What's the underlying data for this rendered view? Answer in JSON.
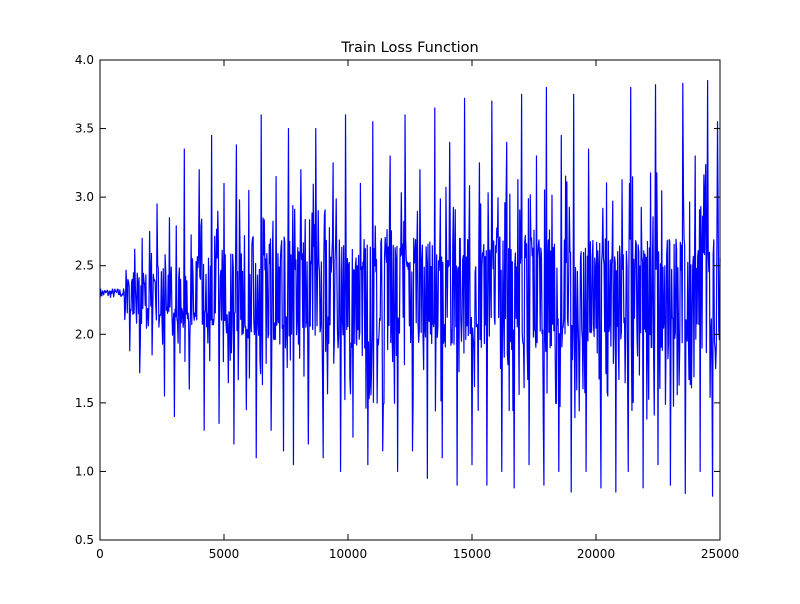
{
  "chart_data": {
    "type": "line",
    "title": "Train Loss Function",
    "xlabel": "",
    "ylabel": "",
    "xlim": [
      0,
      25000
    ],
    "ylim": [
      0.5,
      4.0
    ],
    "xticks": [
      0,
      5000,
      10000,
      15000,
      20000,
      25000
    ],
    "xtick_labels": [
      "0",
      "5000",
      "10000",
      "15000",
      "20000",
      "25000"
    ],
    "yticks": [
      0.5,
      1.0,
      1.5,
      2.0,
      2.5,
      3.0,
      3.5,
      4.0
    ],
    "ytick_labels": [
      "0.5",
      "1.0",
      "1.5",
      "2.0",
      "2.5",
      "3.0",
      "3.5",
      "4.0"
    ],
    "grid": false,
    "legend": "none",
    "series": [
      {
        "color": "#0000ff",
        "summary": {
          "start_level": 2.3,
          "center_level": 2.28,
          "flat_until_iteration": 1000,
          "peak_max": 3.85,
          "trough_min": 0.82,
          "dense_band_low": 1.9,
          "dense_band_high": 2.7,
          "iterations": 25000
        },
        "spikes_high": [
          [
            1400,
            2.62
          ],
          [
            1700,
            2.7
          ],
          [
            2000,
            2.75
          ],
          [
            2300,
            2.95
          ],
          [
            2800,
            2.85
          ],
          [
            3400,
            3.35
          ],
          [
            4000,
            3.2
          ],
          [
            4500,
            3.45
          ],
          [
            5000,
            3.1
          ],
          [
            5500,
            3.38
          ],
          [
            6000,
            3.05
          ],
          [
            6500,
            3.6
          ],
          [
            7100,
            3.15
          ],
          [
            7600,
            3.5
          ],
          [
            8100,
            3.2
          ],
          [
            8700,
            3.5
          ],
          [
            9400,
            3.25
          ],
          [
            9900,
            3.6
          ],
          [
            10500,
            3.1
          ],
          [
            11000,
            3.55
          ],
          [
            11700,
            3.3
          ],
          [
            12300,
            3.6
          ],
          [
            12900,
            3.2
          ],
          [
            13500,
            3.65
          ],
          [
            14100,
            3.4
          ],
          [
            14700,
            3.72
          ],
          [
            15300,
            3.25
          ],
          [
            15800,
            3.7
          ],
          [
            16400,
            3.4
          ],
          [
            17000,
            3.75
          ],
          [
            17600,
            3.3
          ],
          [
            18000,
            3.8
          ],
          [
            18600,
            3.45
          ],
          [
            19100,
            3.75
          ],
          [
            19700,
            3.35
          ],
          [
            20200,
            3.8
          ],
          [
            20800,
            3.5
          ],
          [
            21400,
            3.8
          ],
          [
            21900,
            3.4
          ],
          [
            22400,
            3.82
          ],
          [
            23000,
            3.5
          ],
          [
            23500,
            3.83
          ],
          [
            24000,
            3.3
          ],
          [
            24500,
            3.85
          ],
          [
            24900,
            3.55
          ]
        ],
        "spikes_low": [
          [
            1200,
            1.88
          ],
          [
            1600,
            1.72
          ],
          [
            2100,
            1.85
          ],
          [
            2600,
            1.55
          ],
          [
            3000,
            1.4
          ],
          [
            3600,
            1.6
          ],
          [
            4200,
            1.3
          ],
          [
            4800,
            1.35
          ],
          [
            5400,
            1.2
          ],
          [
            5900,
            1.45
          ],
          [
            6300,
            1.1
          ],
          [
            6900,
            1.3
          ],
          [
            7400,
            1.15
          ],
          [
            7800,
            1.05
          ],
          [
            8400,
            1.2
          ],
          [
            9000,
            1.1
          ],
          [
            9700,
            1.0
          ],
          [
            10200,
            1.25
          ],
          [
            10800,
            1.05
          ],
          [
            11400,
            1.15
          ],
          [
            12000,
            1.0
          ],
          [
            12600,
            1.15
          ],
          [
            13200,
            0.95
          ],
          [
            13800,
            1.1
          ],
          [
            14400,
            0.9
          ],
          [
            15000,
            1.05
          ],
          [
            15600,
            0.9
          ],
          [
            16200,
            1.0
          ],
          [
            16700,
            0.88
          ],
          [
            17300,
            1.05
          ],
          [
            17900,
            0.9
          ],
          [
            18500,
            1.0
          ],
          [
            19000,
            0.85
          ],
          [
            19600,
            1.0
          ],
          [
            20200,
            0.88
          ],
          [
            20800,
            0.85
          ],
          [
            21300,
            1.0
          ],
          [
            21900,
            0.88
          ],
          [
            22500,
            1.05
          ],
          [
            23000,
            0.9
          ],
          [
            23600,
            0.84
          ],
          [
            24200,
            1.0
          ],
          [
            24700,
            0.82
          ]
        ]
      }
    ]
  }
}
